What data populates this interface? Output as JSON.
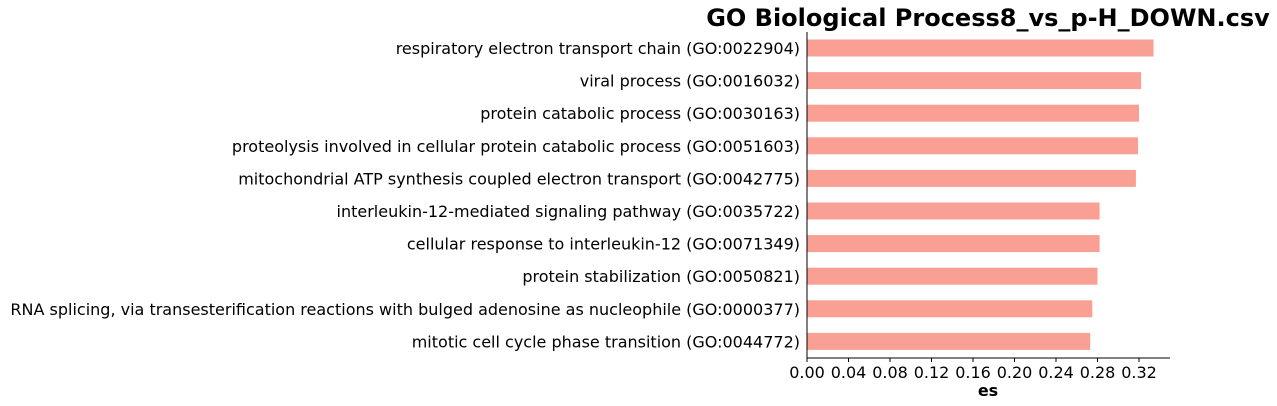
{
  "chart_data": {
    "type": "bar",
    "orientation": "horizontal",
    "title": "GO Biological Process8_vs_p-H_DOWN.csv",
    "xlabel": "es",
    "ylabel": "",
    "xlim": [
      0,
      0.35
    ],
    "xticks": [
      0.0,
      0.04,
      0.08,
      0.12,
      0.16,
      0.2,
      0.24,
      0.28,
      0.32
    ],
    "xtick_labels": [
      "0.00",
      "0.04",
      "0.08",
      "0.12",
      "0.16",
      "0.20",
      "0.24",
      "0.28",
      "0.32"
    ],
    "bar_color": "#fa9f94",
    "categories": [
      "respiratory electron transport chain (GO:0022904)",
      "viral process (GO:0016032)",
      "protein catabolic process (GO:0030163)",
      "proteolysis involved in cellular protein catabolic process (GO:0051603)",
      "mitochondrial ATP synthesis coupled electron transport (GO:0042775)",
      "interleukin-12-mediated signaling pathway (GO:0035722)",
      "cellular response to interleukin-12 (GO:0071349)",
      "protein stabilization (GO:0050821)",
      "RNA splicing, via transesterification reactions with bulged adenosine as nucleophile (GO:0000377)",
      "mitotic cell cycle phase transition (GO:0044772)"
    ],
    "values": [
      0.334,
      0.322,
      0.32,
      0.319,
      0.317,
      0.282,
      0.282,
      0.28,
      0.275,
      0.273
    ]
  }
}
